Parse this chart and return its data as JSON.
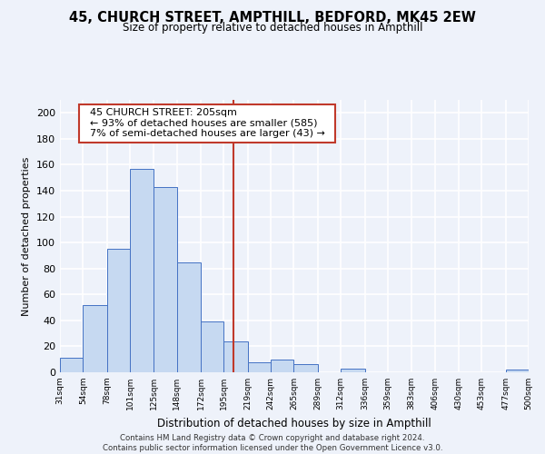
{
  "title": "45, CHURCH STREET, AMPTHILL, BEDFORD, MK45 2EW",
  "subtitle": "Size of property relative to detached houses in Ampthill",
  "xlabel": "Distribution of detached houses by size in Ampthill",
  "ylabel": "Number of detached properties",
  "bin_labels": [
    "31sqm",
    "54sqm",
    "78sqm",
    "101sqm",
    "125sqm",
    "148sqm",
    "172sqm",
    "195sqm",
    "219sqm",
    "242sqm",
    "265sqm",
    "289sqm",
    "312sqm",
    "336sqm",
    "359sqm",
    "383sqm",
    "406sqm",
    "430sqm",
    "453sqm",
    "477sqm",
    "500sqm"
  ],
  "bar_values": [
    11,
    52,
    95,
    157,
    143,
    85,
    39,
    24,
    8,
    10,
    6,
    0,
    3,
    0,
    0,
    0,
    0,
    0,
    0,
    2
  ],
  "bar_color": "#c6d9f1",
  "bar_edge_color": "#4472c4",
  "ylim": [
    0,
    210
  ],
  "yticks": [
    0,
    20,
    40,
    60,
    80,
    100,
    120,
    140,
    160,
    180,
    200
  ],
  "vline_x": 205,
  "vline_color": "#c0392b",
  "annotation_title": "45 CHURCH STREET: 205sqm",
  "annotation_line1": "← 93% of detached houses are smaller (585)",
  "annotation_line2": "7% of semi-detached houses are larger (43) →",
  "annotation_box_color": "#ffffff",
  "annotation_box_edge": "#c0392b",
  "footer_line1": "Contains HM Land Registry data © Crown copyright and database right 2024.",
  "footer_line2": "Contains public sector information licensed under the Open Government Licence v3.0.",
  "background_color": "#eef2fa",
  "grid_color": "#ffffff",
  "bin_edges": [
    31,
    54,
    78,
    101,
    125,
    148,
    172,
    195,
    219,
    242,
    265,
    289,
    312,
    336,
    359,
    383,
    406,
    430,
    453,
    477,
    500
  ]
}
